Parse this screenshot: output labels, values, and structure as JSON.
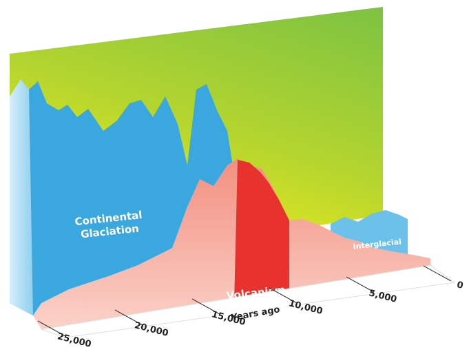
{
  "chart_data": {
    "type": "illustration",
    "glaciation_label": [
      "Continental",
      "Glaciation"
    ],
    "interglacial_label": "Interglacial",
    "volcanism_label": "Volcanism",
    "x_label": "Years ago",
    "xlim": [
      25000,
      0
    ],
    "xticks": [
      {
        "value": 25000,
        "label": "25,000"
      },
      {
        "value": 20000,
        "label": "20,000"
      },
      {
        "value": 15000,
        "label": "15,000"
      },
      {
        "value": 10000,
        "label": "10,000"
      },
      {
        "value": 5000,
        "label": "5,000"
      },
      0
    ]
  }
}
